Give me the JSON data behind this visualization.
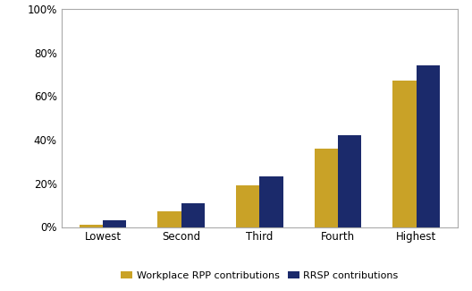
{
  "categories": [
    "Lowest",
    "Second",
    "Third",
    "Fourth",
    "Highest"
  ],
  "rpp_values": [
    1,
    7,
    19,
    36,
    67
  ],
  "rrsp_values": [
    3,
    11,
    23,
    42,
    74
  ],
  "rpp_color": "#C9A227",
  "rrsp_color": "#1B2A6B",
  "rpp_label": "Workplace RPP contributions",
  "rrsp_label": "RRSP contributions",
  "ylim": [
    0,
    100
  ],
  "yticks": [
    0,
    20,
    40,
    60,
    80,
    100
  ],
  "bar_width": 0.3,
  "background_color": "#ffffff",
  "legend_fontsize": 8,
  "tick_fontsize": 8.5,
  "border_color": "#aaaaaa",
  "fig_width": 5.28,
  "fig_height": 3.25
}
